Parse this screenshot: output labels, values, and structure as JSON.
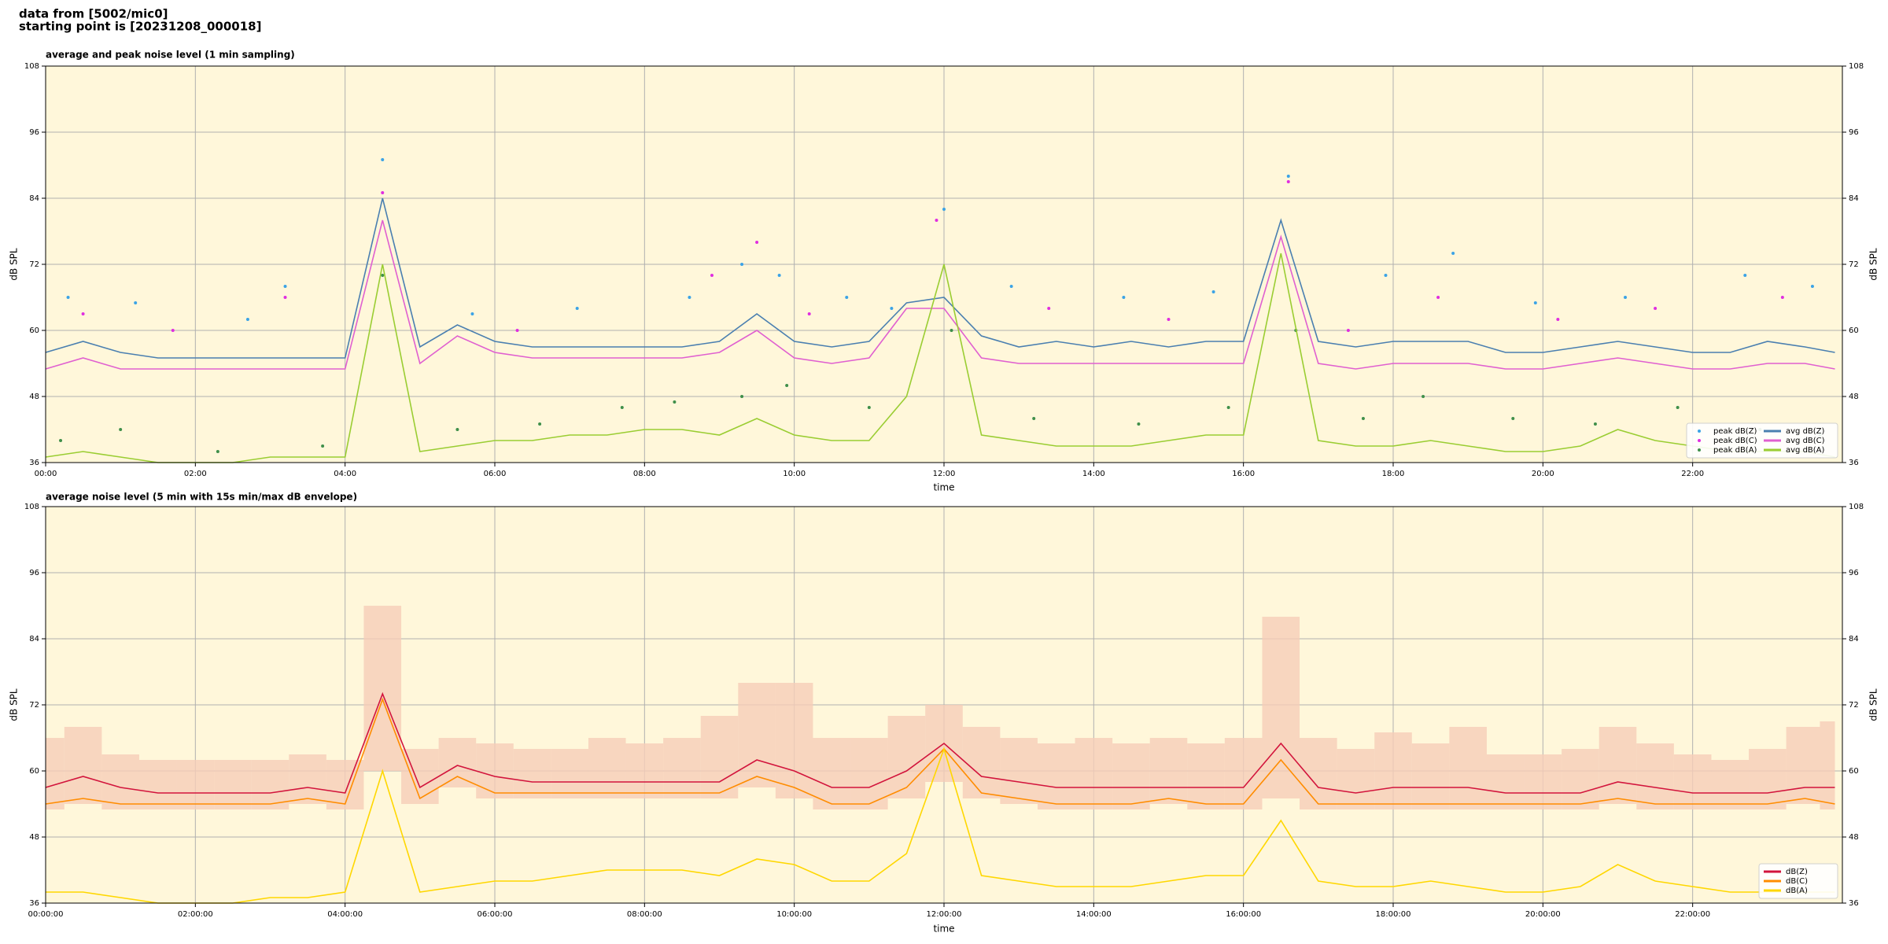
{
  "header": [
    "data from [5002/mic0]",
    "starting point is [20231208_000018]"
  ],
  "chart_data": [
    {
      "type": "line",
      "title": "average and peak noise level (1 min sampling)",
      "xlabel": "time",
      "ylabel": "dB SPL",
      "background": "#fff7da",
      "grid": true,
      "legend": "lower right",
      "legend_columns": 2,
      "xlim": [
        0,
        24
      ],
      "ylim": [
        36,
        108
      ],
      "yticks": [
        36,
        48,
        60,
        72,
        84,
        96,
        108
      ],
      "xticks": [
        {
          "value": 0,
          "label": "00:00"
        },
        {
          "value": 2,
          "label": "02:00"
        },
        {
          "value": 4,
          "label": "04:00"
        },
        {
          "value": 6,
          "label": "06:00"
        },
        {
          "value": 8,
          "label": "08:00"
        },
        {
          "value": 10,
          "label": "10:00"
        },
        {
          "value": 12,
          "label": "12:00"
        },
        {
          "value": 14,
          "label": "14:00"
        },
        {
          "value": 16,
          "label": "16:00"
        },
        {
          "value": 18,
          "label": "18:00"
        },
        {
          "value": 20,
          "label": "20:00"
        },
        {
          "value": 22,
          "label": "22:00"
        }
      ],
      "x": [
        0,
        0.5,
        1,
        1.5,
        2,
        2.5,
        3,
        3.5,
        4,
        4.5,
        5,
        5.5,
        6,
        6.5,
        7,
        7.5,
        8,
        8.5,
        9,
        9.5,
        10,
        10.5,
        11,
        11.5,
        12,
        12.5,
        13,
        13.5,
        14,
        14.5,
        15,
        15.5,
        16,
        16.5,
        17,
        17.5,
        18,
        18.5,
        19,
        19.5,
        20,
        20.5,
        21,
        21.5,
        22,
        22.5,
        23,
        23.5,
        23.9
      ],
      "series": [
        {
          "name": "peak dB(Z)",
          "type": "scatter",
          "color": "#3ba3e6",
          "x": [
            0.3,
            1.2,
            2.7,
            3.2,
            4.5,
            5.7,
            7.1,
            8.6,
            9.3,
            9.8,
            10.7,
            11.3,
            12.0,
            12.9,
            14.4,
            15.6,
            16.6,
            17.9,
            18.8,
            19.9,
            21.1,
            22.7,
            23.6
          ],
          "values": [
            66,
            65,
            62,
            68,
            91,
            63,
            64,
            66,
            72,
            70,
            66,
            64,
            82,
            68,
            66,
            67,
            88,
            70,
            74,
            65,
            66,
            70,
            68
          ]
        },
        {
          "name": "peak dB(C)",
          "type": "scatter",
          "color": "#e02ee0",
          "x": [
            0.5,
            1.7,
            3.2,
            4.5,
            6.3,
            8.9,
            9.5,
            10.2,
            11.9,
            13.4,
            15.0,
            16.6,
            17.4,
            18.6,
            20.2,
            21.5,
            23.2
          ],
          "values": [
            63,
            60,
            66,
            85,
            60,
            70,
            76,
            63,
            80,
            64,
            62,
            87,
            60,
            66,
            62,
            64,
            66
          ]
        },
        {
          "name": "peak dB(A)",
          "type": "scatter",
          "color": "#3f8f4a",
          "x": [
            0.2,
            1.0,
            2.3,
            3.7,
            4.5,
            5.5,
            6.6,
            7.7,
            8.4,
            9.3,
            9.9,
            11.0,
            12.1,
            13.2,
            14.6,
            15.8,
            16.7,
            17.6,
            18.4,
            19.6,
            20.7,
            21.8,
            22.9,
            23.7
          ],
          "values": [
            40,
            42,
            38,
            39,
            70,
            42,
            43,
            46,
            47,
            48,
            50,
            46,
            60,
            44,
            43,
            46,
            60,
            44,
            48,
            44,
            43,
            46,
            42,
            41
          ]
        },
        {
          "name": "avg dB(Z)",
          "color": "#4a7fb0",
          "values": [
            56,
            58,
            56,
            55,
            55,
            55,
            55,
            55,
            55,
            84,
            57,
            61,
            58,
            57,
            57,
            57,
            57,
            57,
            58,
            63,
            58,
            57,
            58,
            65,
            66,
            59,
            57,
            58,
            57,
            58,
            57,
            58,
            58,
            80,
            58,
            57,
            58,
            58,
            58,
            56,
            56,
            57,
            58,
            57,
            56,
            56,
            58,
            57,
            56
          ]
        },
        {
          "name": "avg dB(C)",
          "color": "#e060d0",
          "values": [
            53,
            55,
            53,
            53,
            53,
            53,
            53,
            53,
            53,
            80,
            54,
            59,
            56,
            55,
            55,
            55,
            55,
            55,
            56,
            60,
            55,
            54,
            55,
            64,
            64,
            55,
            54,
            54,
            54,
            54,
            54,
            54,
            54,
            77,
            54,
            53,
            54,
            54,
            54,
            53,
            53,
            54,
            55,
            54,
            53,
            53,
            54,
            54,
            53
          ]
        },
        {
          "name": "avg dB(A)",
          "color": "#9acd32",
          "values": [
            37,
            38,
            37,
            36,
            36,
            36,
            37,
            37,
            37,
            72,
            38,
            39,
            40,
            40,
            41,
            41,
            42,
            42,
            41,
            44,
            41,
            40,
            40,
            48,
            72,
            41,
            40,
            39,
            39,
            39,
            40,
            41,
            41,
            74,
            40,
            39,
            39,
            40,
            39,
            38,
            38,
            39,
            42,
            40,
            39,
            38,
            38,
            38,
            37
          ]
        }
      ]
    },
    {
      "type": "line",
      "title": "average noise level (5 min with 15s min/max dB envelope)",
      "xlabel": "time",
      "ylabel": "dB SPL",
      "background": "#fff7da",
      "grid": true,
      "legend": "lower right",
      "legend_columns": 1,
      "xlim": [
        0,
        24
      ],
      "ylim": [
        36,
        108
      ],
      "yticks": [
        36,
        48,
        60,
        72,
        84,
        96,
        108
      ],
      "xticks": [
        {
          "value": 0,
          "label": "00:00:00"
        },
        {
          "value": 2,
          "label": "02:00:00"
        },
        {
          "value": 4,
          "label": "04:00:00"
        },
        {
          "value": 6,
          "label": "06:00:00"
        },
        {
          "value": 8,
          "label": "08:00:00"
        },
        {
          "value": 10,
          "label": "10:00:00"
        },
        {
          "value": 12,
          "label": "12:00:00"
        },
        {
          "value": 14,
          "label": "14:00:00"
        },
        {
          "value": 16,
          "label": "16:00:00"
        },
        {
          "value": 18,
          "label": "18:00:00"
        },
        {
          "value": 20,
          "label": "20:00:00"
        },
        {
          "value": 22,
          "label": "22:00:00"
        }
      ],
      "x": [
        0,
        0.5,
        1,
        1.5,
        2,
        2.5,
        3,
        3.5,
        4,
        4.5,
        5,
        5.5,
        6,
        6.5,
        7,
        7.5,
        8,
        8.5,
        9,
        9.5,
        10,
        10.5,
        11,
        11.5,
        12,
        12.5,
        13,
        13.5,
        14,
        14.5,
        15,
        15.5,
        16,
        16.5,
        17,
        17.5,
        18,
        18.5,
        19,
        19.5,
        20,
        20.5,
        21,
        21.5,
        22,
        22.5,
        23,
        23.5,
        23.9
      ],
      "envelope": {
        "color": "#f6cdb8",
        "low": [
          53,
          54,
          53,
          53,
          53,
          53,
          53,
          54,
          53,
          60,
          54,
          57,
          55,
          55,
          55,
          55,
          55,
          55,
          55,
          57,
          55,
          53,
          53,
          55,
          58,
          55,
          54,
          53,
          53,
          53,
          54,
          53,
          53,
          55,
          53,
          53,
          53,
          53,
          53,
          53,
          53,
          53,
          54,
          53,
          53,
          53,
          53,
          54,
          53
        ],
        "high": [
          66,
          68,
          63,
          62,
          62,
          62,
          62,
          63,
          62,
          90,
          64,
          66,
          65,
          64,
          64,
          66,
          65,
          66,
          70,
          76,
          76,
          66,
          66,
          70,
          72,
          68,
          66,
          65,
          66,
          65,
          66,
          65,
          66,
          88,
          66,
          64,
          67,
          65,
          68,
          63,
          63,
          64,
          68,
          65,
          63,
          62,
          64,
          68,
          69
        ]
      },
      "series": [
        {
          "name": "dB(Z)",
          "color": "#d2143c",
          "values": [
            57,
            59,
            57,
            56,
            56,
            56,
            56,
            57,
            56,
            74,
            57,
            61,
            59,
            58,
            58,
            58,
            58,
            58,
            58,
            62,
            60,
            57,
            57,
            60,
            65,
            59,
            58,
            57,
            57,
            57,
            57,
            57,
            57,
            65,
            57,
            56,
            57,
            57,
            57,
            56,
            56,
            56,
            58,
            57,
            56,
            56,
            56,
            57,
            57
          ]
        },
        {
          "name": "dB(C)",
          "color": "#ff8c00",
          "values": [
            54,
            55,
            54,
            54,
            54,
            54,
            54,
            55,
            54,
            73,
            55,
            59,
            56,
            56,
            56,
            56,
            56,
            56,
            56,
            59,
            57,
            54,
            54,
            57,
            64,
            56,
            55,
            54,
            54,
            54,
            55,
            54,
            54,
            62,
            54,
            54,
            54,
            54,
            54,
            54,
            54,
            54,
            55,
            54,
            54,
            54,
            54,
            55,
            54
          ]
        },
        {
          "name": "dB(A)",
          "color": "#ffd700",
          "values": [
            38,
            38,
            37,
            36,
            36,
            36,
            37,
            37,
            38,
            60,
            38,
            39,
            40,
            40,
            41,
            42,
            42,
            42,
            41,
            44,
            43,
            40,
            40,
            45,
            64,
            41,
            40,
            39,
            39,
            39,
            40,
            41,
            41,
            51,
            40,
            39,
            39,
            40,
            39,
            38,
            38,
            39,
            43,
            40,
            39,
            38,
            38,
            38,
            38
          ]
        }
      ]
    }
  ]
}
